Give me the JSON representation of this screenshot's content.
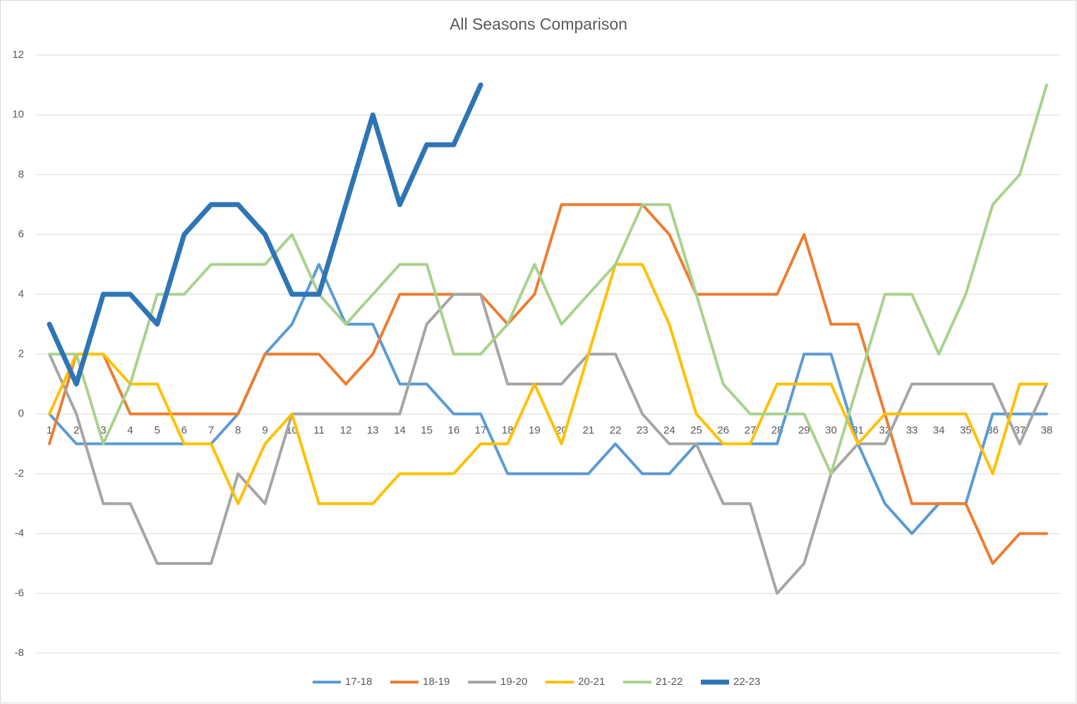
{
  "chart_data": {
    "type": "line",
    "title": "All Seasons Comparison",
    "categories": [
      "1",
      "2",
      "3",
      "4",
      "5",
      "6",
      "7",
      "8",
      "9",
      "10",
      "11",
      "12",
      "13",
      "14",
      "15",
      "16",
      "17",
      "18",
      "19",
      "20",
      "21",
      "22",
      "23",
      "24",
      "25",
      "26",
      "27",
      "28",
      "29",
      "30",
      "31",
      "32",
      "33",
      "34",
      "35",
      "36",
      "37",
      "38"
    ],
    "series": [
      {
        "name": "17-18",
        "color": "#5b9bd5",
        "values": [
          0,
          -1,
          -1,
          -1,
          -1,
          -1,
          -1,
          0,
          2,
          3,
          5,
          3,
          3,
          1,
          1,
          0,
          0,
          -2,
          -2,
          -2,
          -2,
          -1,
          -2,
          -2,
          -1,
          -1,
          -1,
          -1,
          2,
          2,
          -1,
          -3,
          -4,
          -3,
          -3,
          0,
          0,
          0
        ]
      },
      {
        "name": "18-19",
        "color": "#ed7d31",
        "values": [
          -1,
          2,
          2,
          0,
          0,
          0,
          0,
          0,
          2,
          2,
          2,
          1,
          2,
          4,
          4,
          4,
          4,
          3,
          4,
          7,
          7,
          7,
          7,
          6,
          4,
          4,
          4,
          4,
          6,
          3,
          3,
          0,
          -3,
          -3,
          -3,
          -5,
          -4,
          -4
        ]
      },
      {
        "name": "19-20",
        "color": "#a5a5a5",
        "values": [
          2,
          0,
          -3,
          -3,
          -5,
          -5,
          -5,
          -2,
          -3,
          0,
          0,
          0,
          0,
          0,
          3,
          4,
          4,
          1,
          1,
          1,
          2,
          2,
          0,
          -1,
          -1,
          -3,
          -3,
          -6,
          -5,
          -2,
          -1,
          -1,
          1,
          1,
          1,
          1,
          -1,
          1
        ]
      },
      {
        "name": "20-21",
        "color": "#ffc000",
        "values": [
          0,
          2,
          2,
          1,
          1,
          -1,
          -1,
          -3,
          -1,
          0,
          -3,
          -3,
          -3,
          -2,
          -2,
          -2,
          -1,
          -1,
          1,
          -1,
          2,
          5,
          5,
          3,
          0,
          -1,
          -1,
          1,
          1,
          1,
          -1,
          0,
          0,
          0,
          0,
          -2,
          1,
          1
        ]
      },
      {
        "name": "21-22",
        "color": "#a9d18e",
        "values": [
          2,
          2,
          -1,
          1,
          4,
          4,
          5,
          5,
          5,
          6,
          4,
          3,
          4,
          5,
          5,
          2,
          2,
          3,
          5,
          3,
          4,
          5,
          7,
          7,
          4,
          1,
          0,
          0,
          0,
          -2,
          1,
          4,
          4,
          2,
          4,
          7,
          8,
          11
        ]
      },
      {
        "name": "22-23",
        "color": "#2e75b6",
        "values": [
          3,
          1,
          4,
          4,
          3,
          6,
          7,
          7,
          6,
          4,
          4,
          7,
          10,
          7,
          9,
          9,
          11,
          null,
          null,
          null,
          null,
          null,
          null,
          null,
          null,
          null,
          null,
          null,
          null,
          null,
          null,
          null,
          null,
          null,
          null,
          null,
          null,
          null
        ]
      }
    ],
    "ylim": [
      -8,
      12
    ],
    "yticks": [
      -8,
      -6,
      -4,
      -2,
      0,
      2,
      4,
      6,
      8,
      10,
      12
    ],
    "grid": true,
    "legend": "bottom"
  }
}
